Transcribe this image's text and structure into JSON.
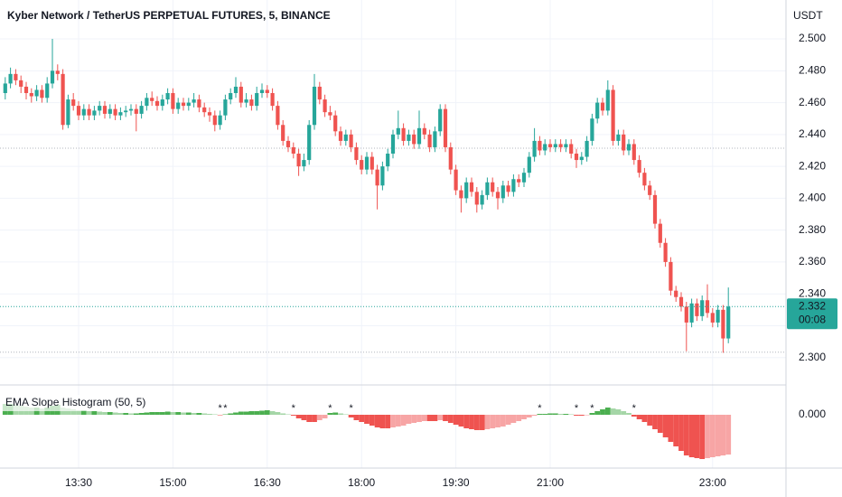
{
  "chart_data": [
    {
      "type": "candlestick",
      "title": "Kyber Network / TetherUS PERPETUAL FUTURES, 5, BINANCE",
      "y_axis_label": "USDT",
      "categories": [
        null,
        null,
        null,
        null,
        null,
        null,
        null,
        null,
        null,
        null,
        null,
        null,
        null,
        null,
        "13:30",
        null,
        null,
        null,
        null,
        null,
        null,
        null,
        null,
        null,
        null,
        null,
        null,
        null,
        null,
        null,
        null,
        null,
        "15:00",
        null,
        null,
        null,
        null,
        null,
        null,
        null,
        null,
        null,
        null,
        null,
        null,
        null,
        null,
        null,
        null,
        null,
        "16:30",
        null,
        null,
        null,
        null,
        null,
        null,
        null,
        null,
        null,
        null,
        null,
        null,
        null,
        null,
        null,
        null,
        null,
        "18:00",
        null,
        null,
        null,
        null,
        null,
        null,
        null,
        null,
        null,
        null,
        null,
        null,
        null,
        null,
        null,
        null,
        null,
        "19:30",
        null,
        null,
        null,
        null,
        null,
        null,
        null,
        null,
        null,
        null,
        null,
        null,
        null,
        null,
        null,
        null,
        null,
        "21:00",
        null,
        null,
        null,
        null,
        null,
        null,
        null,
        null,
        null,
        null,
        null,
        null,
        null,
        null,
        null,
        null,
        null,
        null,
        null,
        null,
        null,
        null,
        null,
        null,
        null,
        null,
        null,
        null,
        null,
        null,
        "23:00",
        null,
        null
      ],
      "ohlc": [
        [
          2.466,
          2.476,
          2.462,
          2.472
        ],
        [
          2.472,
          2.482,
          2.469,
          2.478
        ],
        [
          2.478,
          2.481,
          2.471,
          2.474
        ],
        [
          2.474,
          2.477,
          2.466,
          2.47
        ],
        [
          2.47,
          2.473,
          2.462,
          2.466
        ],
        [
          2.466,
          2.469,
          2.46,
          2.464
        ],
        [
          2.464,
          2.471,
          2.461,
          2.468
        ],
        [
          2.468,
          2.471,
          2.46,
          2.463
        ],
        [
          2.463,
          2.476,
          2.46,
          2.472
        ],
        [
          2.472,
          2.5,
          2.469,
          2.48
        ],
        [
          2.48,
          2.484,
          2.474,
          2.478
        ],
        [
          2.478,
          2.481,
          2.443,
          2.446
        ],
        [
          2.446,
          2.465,
          2.444,
          2.462
        ],
        [
          2.462,
          2.466,
          2.455,
          2.458
        ],
        [
          2.458,
          2.461,
          2.449,
          2.452
        ],
        [
          2.452,
          2.459,
          2.449,
          2.456
        ],
        [
          2.456,
          2.459,
          2.449,
          2.452
        ],
        [
          2.452,
          2.458,
          2.449,
          2.455
        ],
        [
          2.455,
          2.461,
          2.452,
          2.458
        ],
        [
          2.458,
          2.461,
          2.45,
          2.453
        ],
        [
          2.453,
          2.459,
          2.45,
          2.456
        ],
        [
          2.456,
          2.459,
          2.449,
          2.452
        ],
        [
          2.452,
          2.457,
          2.449,
          2.454
        ],
        [
          2.454,
          2.458,
          2.451,
          2.455
        ],
        [
          2.455,
          2.459,
          2.452,
          2.456
        ],
        [
          2.456,
          2.459,
          2.442,
          2.453
        ],
        [
          2.453,
          2.461,
          2.45,
          2.458
        ],
        [
          2.458,
          2.466,
          2.455,
          2.463
        ],
        [
          2.463,
          2.467,
          2.458,
          2.461
        ],
        [
          2.461,
          2.464,
          2.455,
          2.458
        ],
        [
          2.458,
          2.465,
          2.455,
          2.462
        ],
        [
          2.462,
          2.469,
          2.459,
          2.466
        ],
        [
          2.466,
          2.469,
          2.453,
          2.456
        ],
        [
          2.456,
          2.463,
          2.453,
          2.46
        ],
        [
          2.46,
          2.463,
          2.455,
          2.458
        ],
        [
          2.458,
          2.463,
          2.455,
          2.46
        ],
        [
          2.46,
          2.466,
          2.457,
          2.462
        ],
        [
          2.462,
          2.465,
          2.454,
          2.457
        ],
        [
          2.457,
          2.46,
          2.451,
          2.454
        ],
        [
          2.454,
          2.457,
          2.448,
          2.452
        ],
        [
          2.452,
          2.455,
          2.442,
          2.446
        ],
        [
          2.446,
          2.455,
          2.443,
          2.452
        ],
        [
          2.452,
          2.465,
          2.449,
          2.462
        ],
        [
          2.462,
          2.469,
          2.459,
          2.466
        ],
        [
          2.466,
          2.476,
          2.463,
          2.47
        ],
        [
          2.47,
          2.473,
          2.457,
          2.46
        ],
        [
          2.46,
          2.466,
          2.457,
          2.462
        ],
        [
          2.462,
          2.465,
          2.455,
          2.458
        ],
        [
          2.458,
          2.47,
          2.455,
          2.466
        ],
        [
          2.466,
          2.472,
          2.463,
          2.468
        ],
        [
          2.468,
          2.471,
          2.463,
          2.466
        ],
        [
          2.466,
          2.469,
          2.455,
          2.458
        ],
        [
          2.458,
          2.461,
          2.443,
          2.446
        ],
        [
          2.446,
          2.449,
          2.433,
          2.436
        ],
        [
          2.436,
          2.439,
          2.429,
          2.432
        ],
        [
          2.432,
          2.435,
          2.425,
          2.428
        ],
        [
          2.428,
          2.431,
          2.414,
          2.42
        ],
        [
          2.42,
          2.428,
          2.417,
          2.424
        ],
        [
          2.424,
          2.449,
          2.421,
          2.446
        ],
        [
          2.446,
          2.478,
          2.443,
          2.47
        ],
        [
          2.47,
          2.473,
          2.459,
          2.462
        ],
        [
          2.462,
          2.465,
          2.451,
          2.454
        ],
        [
          2.454,
          2.458,
          2.449,
          2.452
        ],
        [
          2.452,
          2.455,
          2.439,
          2.442
        ],
        [
          2.442,
          2.445,
          2.433,
          2.436
        ],
        [
          2.436,
          2.443,
          2.433,
          2.44
        ],
        [
          2.44,
          2.443,
          2.429,
          2.432
        ],
        [
          2.432,
          2.435,
          2.421,
          2.424
        ],
        [
          2.424,
          2.427,
          2.415,
          2.418
        ],
        [
          2.418,
          2.429,
          2.415,
          2.426
        ],
        [
          2.426,
          2.429,
          2.415,
          2.418
        ],
        [
          2.418,
          2.421,
          2.393,
          2.408
        ],
        [
          2.408,
          2.423,
          2.405,
          2.42
        ],
        [
          2.42,
          2.431,
          2.417,
          2.428
        ],
        [
          2.428,
          2.443,
          2.425,
          2.44
        ],
        [
          2.44,
          2.455,
          2.437,
          2.444
        ],
        [
          2.444,
          2.447,
          2.433,
          2.436
        ],
        [
          2.436,
          2.443,
          2.433,
          2.44
        ],
        [
          2.44,
          2.443,
          2.431,
          2.434
        ],
        [
          2.434,
          2.455,
          2.431,
          2.444
        ],
        [
          2.444,
          2.447,
          2.437,
          2.44
        ],
        [
          2.44,
          2.443,
          2.429,
          2.432
        ],
        [
          2.432,
          2.445,
          2.429,
          2.442
        ],
        [
          2.442,
          2.459,
          2.439,
          2.456
        ],
        [
          2.456,
          2.459,
          2.429,
          2.432
        ],
        [
          2.432,
          2.435,
          2.415,
          2.418
        ],
        [
          2.418,
          2.421,
          2.402,
          2.405
        ],
        [
          2.405,
          2.408,
          2.391,
          2.4
        ],
        [
          2.4,
          2.413,
          2.397,
          2.41
        ],
        [
          2.41,
          2.413,
          2.401,
          2.404
        ],
        [
          2.404,
          2.407,
          2.391,
          2.396
        ],
        [
          2.396,
          2.405,
          2.393,
          2.402
        ],
        [
          2.402,
          2.413,
          2.399,
          2.41
        ],
        [
          2.41,
          2.413,
          2.401,
          2.404
        ],
        [
          2.404,
          2.407,
          2.393,
          2.4
        ],
        [
          2.4,
          2.411,
          2.397,
          2.408
        ],
        [
          2.408,
          2.411,
          2.401,
          2.404
        ],
        [
          2.404,
          2.415,
          2.401,
          2.412
        ],
        [
          2.412,
          2.415,
          2.407,
          2.41
        ],
        [
          2.41,
          2.419,
          2.407,
          2.416
        ],
        [
          2.416,
          2.429,
          2.413,
          2.426
        ],
        [
          2.426,
          2.444,
          2.423,
          2.436
        ],
        [
          2.436,
          2.439,
          2.427,
          2.43
        ],
        [
          2.43,
          2.437,
          2.427,
          2.434
        ],
        [
          2.434,
          2.437,
          2.429,
          2.432
        ],
        [
          2.432,
          2.437,
          2.429,
          2.434
        ],
        [
          2.434,
          2.437,
          2.429,
          2.432
        ],
        [
          2.432,
          2.437,
          2.429,
          2.434
        ],
        [
          2.434,
          2.437,
          2.425,
          2.428
        ],
        [
          2.428,
          2.431,
          2.419,
          2.424
        ],
        [
          2.424,
          2.429,
          2.421,
          2.426
        ],
        [
          2.426,
          2.439,
          2.423,
          2.436
        ],
        [
          2.436,
          2.453,
          2.433,
          2.45
        ],
        [
          2.45,
          2.463,
          2.447,
          2.46
        ],
        [
          2.46,
          2.463,
          2.452,
          2.455
        ],
        [
          2.455,
          2.474,
          2.452,
          2.468
        ],
        [
          2.468,
          2.471,
          2.433,
          2.436
        ],
        [
          2.436,
          2.443,
          2.433,
          2.44
        ],
        [
          2.44,
          2.443,
          2.427,
          2.43
        ],
        [
          2.43,
          2.437,
          2.427,
          2.434
        ],
        [
          2.434,
          2.437,
          2.421,
          2.424
        ],
        [
          2.424,
          2.427,
          2.413,
          2.416
        ],
        [
          2.416,
          2.419,
          2.405,
          2.408
        ],
        [
          2.408,
          2.411,
          2.399,
          2.402
        ],
        [
          2.402,
          2.405,
          2.381,
          2.384
        ],
        [
          2.384,
          2.387,
          2.369,
          2.372
        ],
        [
          2.372,
          2.375,
          2.357,
          2.36
        ],
        [
          2.36,
          2.363,
          2.339,
          2.342
        ],
        [
          2.342,
          2.345,
          2.335,
          2.338
        ],
        [
          2.338,
          2.341,
          2.329,
          2.332
        ],
        [
          2.332,
          2.335,
          2.304,
          2.322
        ],
        [
          2.322,
          2.337,
          2.319,
          2.334
        ],
        [
          2.334,
          2.337,
          2.323,
          2.326
        ],
        [
          2.326,
          2.339,
          2.323,
          2.336
        ],
        [
          2.336,
          2.346,
          2.325,
          2.328
        ],
        [
          2.328,
          2.331,
          2.319,
          2.322
        ],
        [
          2.322,
          2.333,
          2.319,
          2.33
        ],
        [
          2.33,
          2.333,
          2.303,
          2.312
        ],
        [
          2.312,
          2.344,
          2.309,
          2.332
        ]
      ],
      "up_color": "#26a69a",
      "down_color": "#ef5350",
      "ylim": [
        2.2834,
        2.5074
      ],
      "yticks": [
        {
          "value": 2.3,
          "label": "2.300"
        },
        {
          "value": 2.32,
          "label": "2.320"
        },
        {
          "value": 2.34,
          "label": "2.340"
        },
        {
          "value": 2.36,
          "label": "2.360"
        },
        {
          "value": 2.38,
          "label": "2.380"
        },
        {
          "value": 2.4,
          "label": "2.400"
        },
        {
          "value": 2.42,
          "label": "2.420"
        },
        {
          "value": 2.44,
          "label": "2.440"
        },
        {
          "value": 2.46,
          "label": "2.460"
        },
        {
          "value": 2.48,
          "label": "2.480"
        },
        {
          "value": 2.5,
          "label": "2.500"
        }
      ],
      "reference_lines": [
        2.4314,
        2.3034
      ],
      "last_price_label": "2.332",
      "countdown": "00:08",
      "grid": true
    },
    {
      "type": "histogram-bars",
      "title": "EMA Slope Histogram (50, 5)",
      "values": [
        0.00024,
        0.00024,
        0.00022,
        0.0002,
        0.00018,
        0.00016,
        0.00016,
        0.00014,
        0.00016,
        0.0002,
        0.00022,
        0.00016,
        0.00014,
        0.00012,
        0.0001,
        0.0001,
        8e-05,
        8e-05,
        7e-05,
        6e-05,
        6e-05,
        5e-05,
        4e-05,
        4e-05,
        3e-05,
        3e-05,
        4e-05,
        5e-05,
        6e-05,
        6e-05,
        6e-05,
        7e-05,
        6e-05,
        6e-05,
        5e-05,
        5e-05,
        4e-05,
        4e-05,
        3e-05,
        2e-05,
        1e-05,
        -1e-05,
        1e-05,
        3e-05,
        5e-05,
        7e-05,
        7e-05,
        8e-05,
        8e-05,
        9e-05,
        0.0001,
        8e-05,
        6e-05,
        3e-05,
        1e-05,
        -2e-05,
        -8e-05,
        -0.00012,
        -0.00016,
        -0.00016,
        -0.00012,
        -8e-05,
        4e-05,
        5e-05,
        3e-05,
        1e-05,
        -6e-05,
        -0.00012,
        -0.00016,
        -0.0002,
        -0.00024,
        -0.00028,
        -0.0003,
        -0.0003,
        -0.00028,
        -0.00026,
        -0.00024,
        -0.0002,
        -0.00018,
        -0.00016,
        -0.00014,
        -0.00014,
        -0.00014,
        -0.00012,
        -0.00014,
        -0.00018,
        -0.00022,
        -0.00026,
        -0.0003,
        -0.00032,
        -0.00034,
        -0.00034,
        -0.00032,
        -0.0003,
        -0.00028,
        -0.00026,
        -0.00022,
        -0.00018,
        -0.00014,
        -0.0001,
        -6e-05,
        -2e-05,
        2e-05,
        2e-05,
        3e-05,
        3e-05,
        2e-05,
        2e-05,
        1e-05,
        -2e-05,
        -2e-05,
        -1e-05,
        4e-05,
        8e-05,
        0.00012,
        0.00016,
        0.00014,
        0.00012,
        8e-05,
        4e-05,
        -4e-05,
        -0.0001,
        -0.00016,
        -0.00024,
        -0.00032,
        -0.0004,
        -0.0005,
        -0.0006,
        -0.0007,
        -0.0008,
        -0.0009,
        -0.00094,
        -0.00096,
        -0.00098,
        -0.00096,
        -0.00094,
        -0.00092,
        -0.0009,
        -0.00088
      ],
      "colors": {
        "up_rising": "#4caf50",
        "up_falling": "#a5d6a7",
        "down_falling": "#ef5350",
        "down_rising": "#f7a5a5"
      },
      "ylim": [
        -0.00142,
        0.00062
      ],
      "yticks": [
        {
          "value": 0,
          "label": "0.000"
        }
      ],
      "signals": [
        {
          "index": 41,
          "label": "*",
          "color": "#ef5350"
        },
        {
          "index": 42,
          "label": "*",
          "color": "#4caf50"
        },
        {
          "index": 55,
          "label": "*",
          "color": "#ef5350"
        },
        {
          "index": 62,
          "label": "*",
          "color": "#4caf50"
        },
        {
          "index": 66,
          "label": "*",
          "color": "#ef5350"
        },
        {
          "index": 102,
          "label": "*",
          "color": "#4caf50"
        },
        {
          "index": 109,
          "label": "*",
          "color": "#ef5350"
        },
        {
          "index": 112,
          "label": "*",
          "color": "#4caf50"
        },
        {
          "index": 120,
          "label": "*",
          "color": "#ef5350"
        }
      ]
    }
  ]
}
